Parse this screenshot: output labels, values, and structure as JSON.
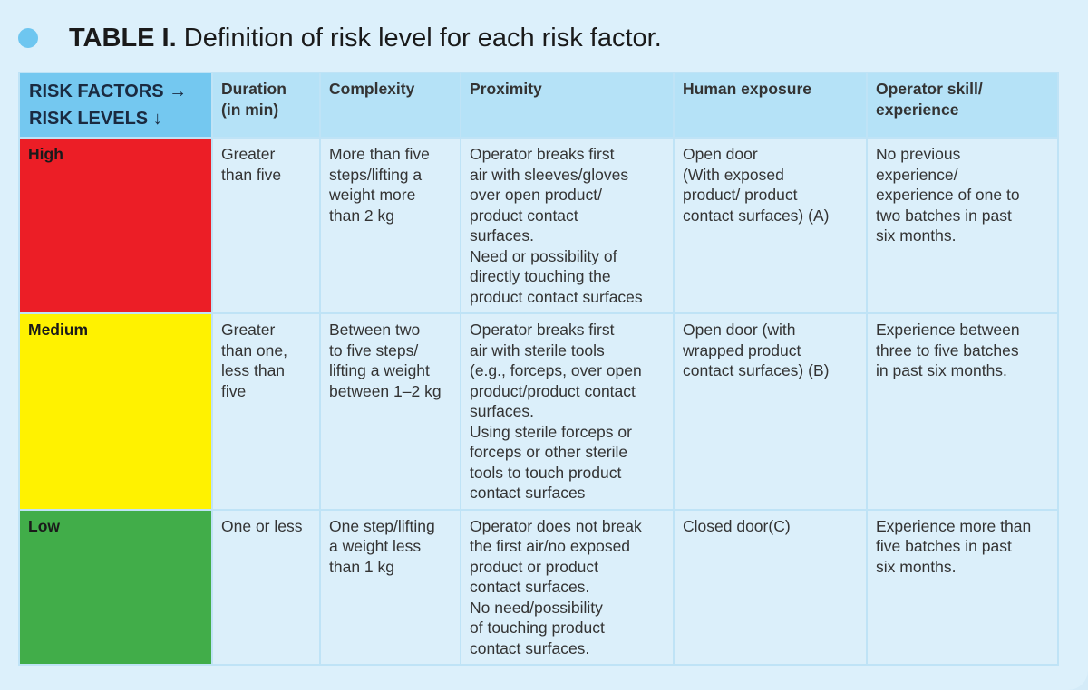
{
  "title": {
    "label": "TABLE I.",
    "text": "Definition of risk level for each risk factor."
  },
  "table": {
    "corner_line1": "RISK FACTORS →",
    "corner_line2": "RISK LEVELS ↓",
    "columns": [
      "Duration\n(in min)",
      "Complexity",
      "Proximity",
      "Human exposure",
      "Operator skill/\nexperience"
    ],
    "rows": [
      {
        "level": "High",
        "color": "#ec1e26",
        "cells": [
          "Greater\nthan five",
          "More than five\nsteps/lifting a\nweight more\nthan 2 kg",
          "Operator breaks first\nair with sleeves/gloves\nover open product/\nproduct contact\nsurfaces.\nNeed or possibility of\ndirectly touching the\nproduct contact surfaces",
          "Open door\n(With exposed\nproduct/ product\ncontact surfaces) (A)",
          "No previous\nexperience/\nexperience of one to\ntwo batches in past\nsix months."
        ]
      },
      {
        "level": "Medium",
        "color": "#fff200",
        "cells": [
          "Greater\nthan one,\nless than\nfive",
          "Between two\nto five steps/\nlifting a weight\nbetween 1–2 kg",
          "Operator breaks first\nair with sterile tools\n(e.g., forceps, over open\nproduct/product contact\nsurfaces.\nUsing sterile forceps or\nforceps or other sterile\ntools to touch product\ncontact surfaces",
          "Open door (with\nwrapped product\ncontact surfaces) (B)",
          "Experience between\nthree to five batches\nin past six months."
        ]
      },
      {
        "level": "Low",
        "color": "#41ad49",
        "cells": [
          "One or less",
          "One step/lifting\na weight less\nthan 1 kg",
          "Operator does not break\nthe first air/no exposed\nproduct or product\ncontact surfaces.\nNo need/possibility\nof touching product\ncontact surfaces.",
          "Closed door(C)",
          "Experience more than\nfive batches in past\nsix months."
        ]
      }
    ]
  }
}
